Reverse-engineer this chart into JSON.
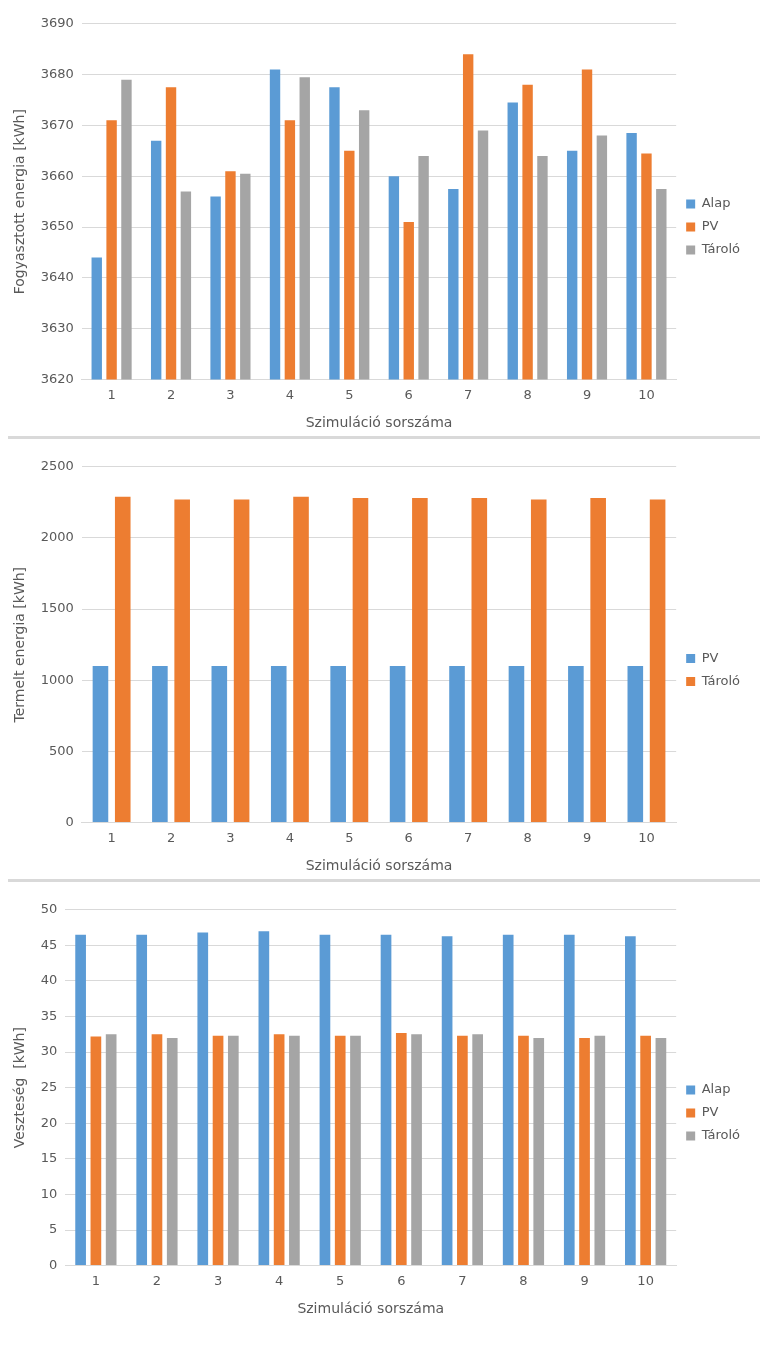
{
  "chart_data": [
    {
      "type": "bar",
      "xlabel": "Szimuláció sorszáma",
      "ylabel": "Fogyasztott energia [kWh]",
      "categories": [
        "1",
        "2",
        "3",
        "4",
        "5",
        "6",
        "7",
        "8",
        "9",
        "10"
      ],
      "series": [
        {
          "name": "Alap",
          "color": "#5b9bd5",
          "values": [
            3644,
            3667,
            3656,
            3681,
            3677.5,
            3660,
            3657.5,
            3674.5,
            3665,
            3668.5
          ]
        },
        {
          "name": "PV",
          "color": "#ed7d31",
          "values": [
            3671,
            3677.5,
            3661,
            3671,
            3665,
            3651,
            3684,
            3678,
            3681,
            3664.5
          ]
        },
        {
          "name": "Tároló",
          "color": "#a5a5a5",
          "values": [
            3679,
            3657,
            3660.5,
            3679.5,
            3673,
            3664,
            3669,
            3664,
            3668,
            3657.5
          ]
        }
      ],
      "ylim": [
        3620,
        3690
      ],
      "yticks": [
        3620,
        3630,
        3640,
        3650,
        3660,
        3670,
        3680,
        3690
      ],
      "grid": "y",
      "legend": "right"
    },
    {
      "type": "bar",
      "xlabel": "Szimuláció sorszáma",
      "ylabel": "Termelt energia [kWh]",
      "categories": [
        "1",
        "2",
        "3",
        "4",
        "5",
        "6",
        "7",
        "8",
        "9",
        "10"
      ],
      "series": [
        {
          "name": "PV",
          "color": "#5b9bd5",
          "values": [
            1100,
            1100,
            1100,
            1100,
            1100,
            1100,
            1100,
            1100,
            1100,
            1100
          ]
        },
        {
          "name": "Tároló",
          "color": "#ed7d31",
          "values": [
            2290,
            2270,
            2270,
            2290,
            2280,
            2280,
            2280,
            2270,
            2280,
            2270
          ]
        }
      ],
      "ylim": [
        0,
        2500
      ],
      "yticks": [
        0,
        500,
        1000,
        1500,
        2000,
        2500
      ],
      "grid": "y",
      "legend": "right"
    },
    {
      "type": "bar",
      "xlabel": "Szimuláció sorszáma",
      "ylabel": "Veszteség  [kWh]",
      "categories": [
        "1",
        "2",
        "3",
        "4",
        "5",
        "6",
        "7",
        "8",
        "9",
        "10"
      ],
      "series": [
        {
          "name": "Alap",
          "color": "#5b9bd5",
          "values": [
            46.5,
            46.5,
            46.8,
            47,
            46.5,
            46.5,
            46.3,
            46.5,
            46.5,
            46.3
          ]
        },
        {
          "name": "PV",
          "color": "#ed7d31",
          "values": [
            32.2,
            32.5,
            32.3,
            32.5,
            32.3,
            32.7,
            32.3,
            32.3,
            32.0,
            32.3
          ]
        },
        {
          "name": "Tároló",
          "color": "#a5a5a5",
          "values": [
            32.5,
            32.0,
            32.3,
            32.3,
            32.3,
            32.5,
            32.5,
            32.0,
            32.3,
            32.0
          ]
        }
      ],
      "ylim": [
        0,
        50
      ],
      "yticks": [
        0,
        5,
        10,
        15,
        20,
        25,
        30,
        35,
        40,
        45,
        50
      ],
      "grid": "y",
      "legend": "right"
    }
  ]
}
